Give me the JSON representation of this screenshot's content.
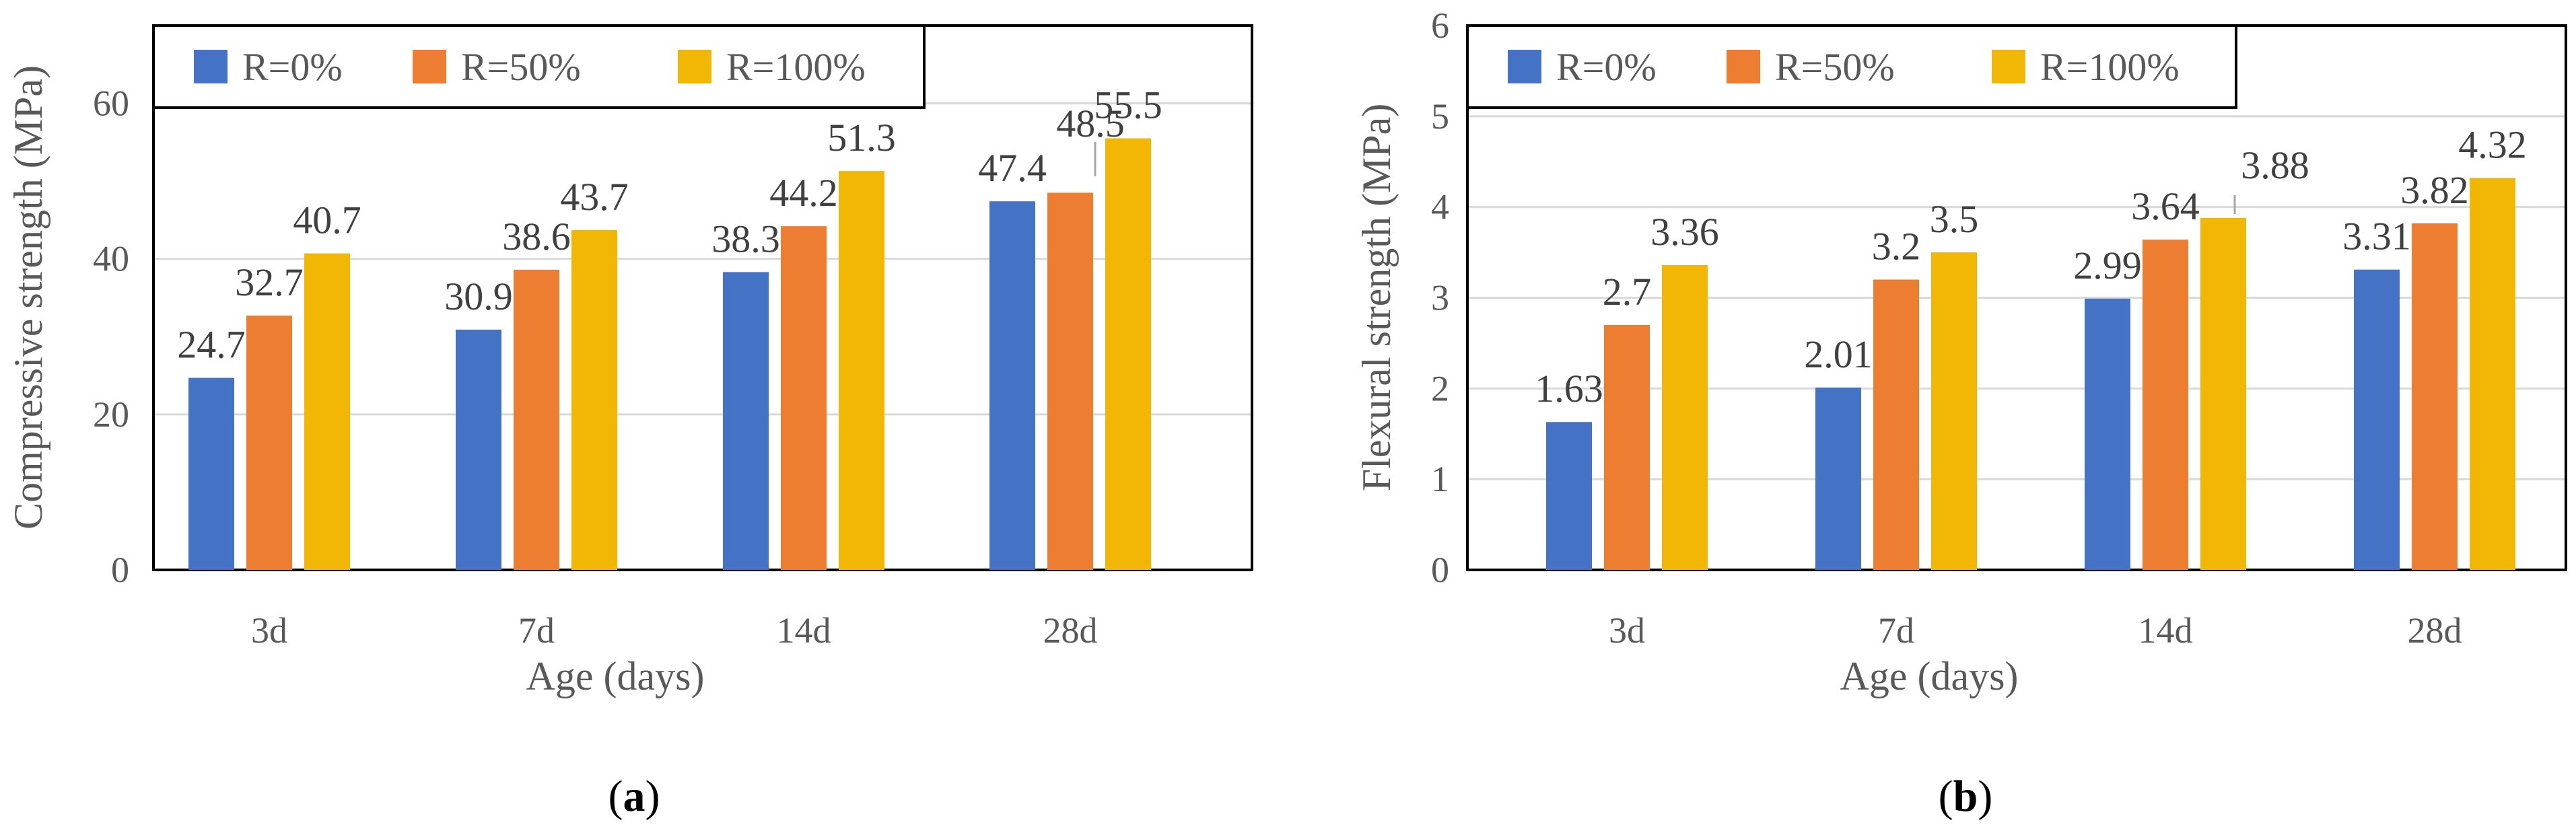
{
  "chart_data": [
    {
      "type": "bar",
      "panel": "a",
      "caption": "(a)",
      "caption_open": "(",
      "caption_letter": "a",
      "caption_close": ")",
      "categories": [
        "3d",
        "7d",
        "14d",
        "28d"
      ],
      "series": [
        {
          "name": "R=0%",
          "color": "#4472C4",
          "values": [
            24.7,
            30.9,
            38.3,
            47.4
          ],
          "labels": [
            "24.7",
            "30.9",
            "38.3",
            "47.4"
          ]
        },
        {
          "name": "R=50%",
          "color": "#ED7D31",
          "values": [
            32.7,
            38.6,
            44.2,
            48.5
          ],
          "labels": [
            "32.7",
            "38.6",
            "44.2",
            "48.5"
          ]
        },
        {
          "name": "R=100%",
          "color": "#F2B705",
          "values": [
            40.7,
            43.7,
            51.3,
            55.5
          ],
          "labels": [
            "40.7",
            "43.7",
            "51.3",
            "55.5"
          ]
        }
      ],
      "title": "",
      "xlabel": "Age (days)",
      "ylabel": "Compressive strength (MPa)",
      "ylim": [
        0,
        70
      ],
      "yticks": [
        0,
        20,
        40,
        60
      ],
      "ytick_labels": [
        "0",
        "20",
        "40",
        "60"
      ],
      "grid": true,
      "legend": "top-left"
    },
    {
      "type": "bar",
      "panel": "b",
      "caption": "(b)",
      "caption_open": "(",
      "caption_letter": "b",
      "caption_close": ")",
      "categories": [
        "3d",
        "7d",
        "14d",
        "28d"
      ],
      "series": [
        {
          "name": "R=0%",
          "color": "#4472C4",
          "values": [
            1.63,
            2.01,
            2.99,
            3.31
          ],
          "labels": [
            "1.63",
            "2.01",
            "2.99",
            "3.31"
          ]
        },
        {
          "name": "R=50%",
          "color": "#ED7D31",
          "values": [
            2.7,
            3.2,
            3.64,
            3.82
          ],
          "labels": [
            "2.7",
            "3.2",
            "3.64",
            "3.82"
          ]
        },
        {
          "name": "R=100%",
          "color": "#F2B705",
          "values": [
            3.36,
            3.5,
            3.88,
            4.32
          ],
          "labels": [
            "3.36",
            "3.5",
            "3.88",
            "4.32"
          ]
        }
      ],
      "title": "",
      "xlabel": "Age (days)",
      "ylabel": "Flexural strength (MPa)",
      "ylim": [
        0,
        6
      ],
      "yticks": [
        0,
        1,
        2,
        3,
        4,
        5,
        6
      ],
      "ytick_labels": [
        "0",
        "1",
        "2",
        "3",
        "4",
        "5",
        "6"
      ],
      "grid": true,
      "legend": "top-left"
    }
  ]
}
